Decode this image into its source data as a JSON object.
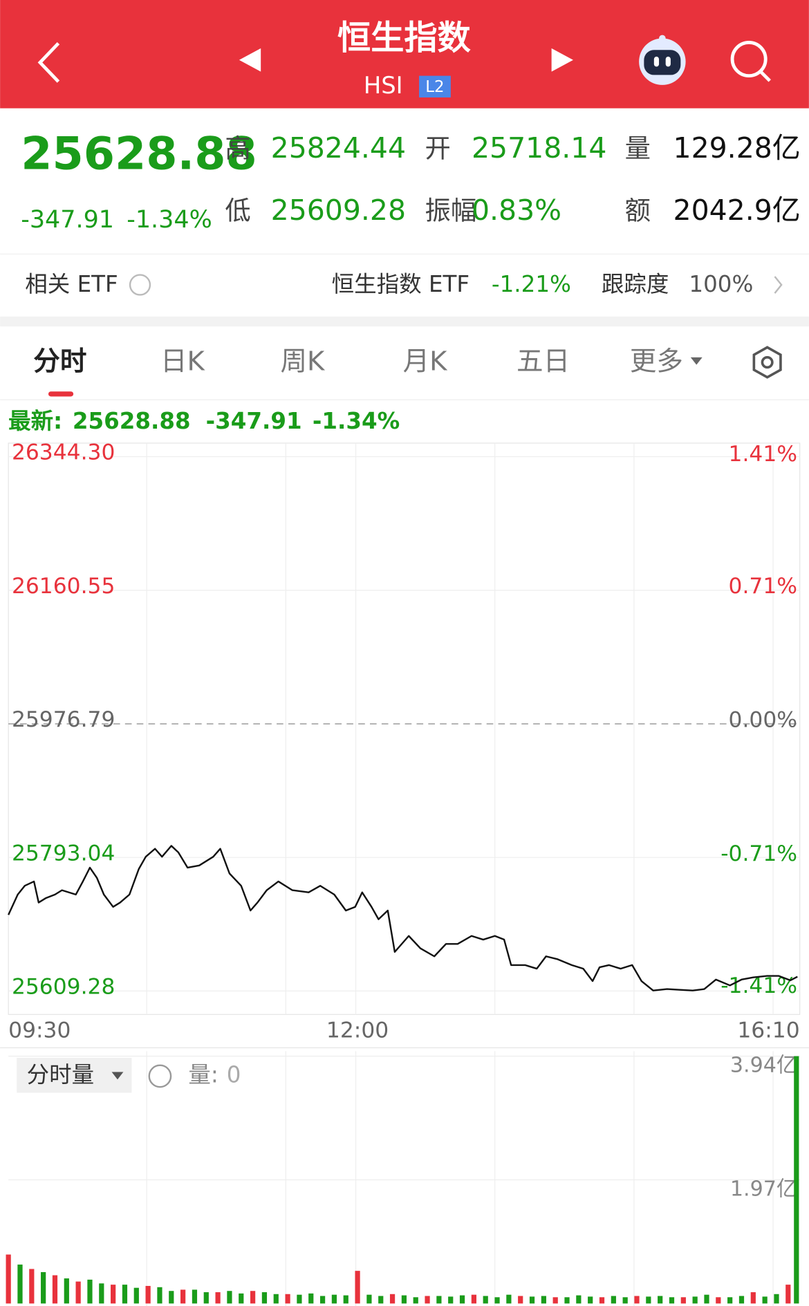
{
  "header": {
    "title": "恒生指数",
    "code": "HSI",
    "badge": "L2"
  },
  "quote": {
    "price": "25628.88",
    "change": "-347.91",
    "change_pct": "-1.34%",
    "items": [
      {
        "label": "高",
        "value": "25824.44"
      },
      {
        "label": "开",
        "value": "25718.14"
      },
      {
        "label": "量",
        "value": "129.28亿"
      },
      {
        "label": "低",
        "value": "25609.28"
      },
      {
        "label": "振幅",
        "value": "0.83%"
      },
      {
        "label": "额",
        "value": "2042.9亿"
      }
    ]
  },
  "etf": {
    "label": "相关 ETF",
    "name": "恒生指数 ETF",
    "change": "-1.21%",
    "tracking_label": "跟踪度",
    "tracking": "100%"
  },
  "tabs": [
    "分时",
    "日K",
    "周K",
    "月K",
    "五日",
    "更多"
  ],
  "latest": {
    "label": "最新:"
  },
  "volume_panel": {
    "selector": "分时量",
    "label": "量:",
    "value": "0"
  },
  "chart_data": [
    {
      "type": "line",
      "x": [
        0,
        4,
        7,
        11,
        13,
        16,
        20,
        23,
        29,
        32,
        35,
        38,
        41,
        45,
        48,
        52,
        56,
        59,
        63,
        66,
        70,
        73,
        77,
        82,
        88,
        91,
        95,
        100,
        104,
        107,
        111,
        116,
        122,
        129,
        134,
        140,
        145,
        149,
        152,
        156,
        159,
        163,
        166,
        172,
        177,
        183,
        188,
        193,
        199,
        204,
        209,
        213,
        216,
        222,
        227,
        231,
        236,
        242,
        247,
        251,
        254,
        258,
        263,
        268,
        272,
        277,
        283,
        288,
        294,
        299,
        304,
        310,
        315,
        320,
        326,
        331,
        336,
        339
      ],
      "series": [
        {
          "color": "#111111",
          "values": [
            25714,
            25742,
            25754,
            25760,
            25731,
            25737,
            25742,
            25748,
            25742,
            25760,
            25779,
            25765,
            25742,
            25725,
            25731,
            25742,
            25777,
            25794,
            25805,
            25794,
            25809,
            25800,
            25779,
            25782,
            25794,
            25805,
            25771,
            25754,
            25720,
            25731,
            25748,
            25760,
            25748,
            25745,
            25754,
            25742,
            25720,
            25725,
            25745,
            25725,
            25708,
            25720,
            25663,
            25685,
            25668,
            25657,
            25674,
            25674,
            25685,
            25680,
            25685,
            25680,
            25645,
            25645,
            25640,
            25657,
            25653,
            25645,
            25640,
            25623,
            25642,
            25645,
            25640,
            25645,
            25623,
            25610,
            25612,
            25611,
            25610,
            25612,
            25625,
            25617,
            25625,
            25628,
            25630,
            25630,
            25624,
            25629
          ]
        }
      ],
      "xlim": [
        0,
        340
      ],
      "xticks": [
        {
          "value": 0,
          "label": "09:30"
        },
        {
          "value": 150,
          "label": "12:00"
        },
        {
          "value": 340,
          "label": "16:10"
        }
      ],
      "ylim": [
        25577,
        26363
      ],
      "yticks": [
        {
          "value": 26344.3,
          "label": "26344.30"
        },
        26160.55,
        25976.79,
        25793.04,
        25609.28
      ],
      "y2lim": [
        -1.54,
        1.49
      ],
      "y2ticks": [
        {
          "value": 1.41,
          "label": "1.41%"
        },
        {
          "value": 0.71,
          "label": "0.71%"
        },
        {
          "value": 0,
          "label": "0.00%"
        },
        {
          "value": -0.71,
          "label": "-0.71%"
        },
        {
          "value": -1.41,
          "label": "-1.41%"
        }
      ],
      "grid": true
    },
    {
      "type": "bar",
      "series": [
        {
          "color": "#e8323c",
          "x": [
            0,
            10,
            20,
            30,
            45,
            60,
            75,
            90,
            105,
            120,
            150,
            165,
            180,
            200,
            220,
            235,
            255,
            270,
            290,
            305,
            320,
            335
          ],
          "values": [
            0.78,
            0.55,
            0.45,
            0.35,
            0.3,
            0.28,
            0.22,
            0.18,
            0.2,
            0.15,
            0.52,
            0.15,
            0.12,
            0.14,
            0.12,
            0.1,
            0.1,
            0.12,
            0.1,
            0.1,
            0.18,
            0.3
          ]
        },
        {
          "color": "#1a9c1a",
          "x": [
            5,
            15,
            25,
            35,
            40,
            50,
            55,
            65,
            70,
            80,
            85,
            95,
            100,
            110,
            115,
            125,
            130,
            135,
            140,
            145,
            155,
            160,
            170,
            175,
            185,
            190,
            195,
            205,
            210,
            215,
            225,
            230,
            240,
            245,
            250,
            260,
            265,
            275,
            280,
            285,
            295,
            300,
            310,
            315,
            325,
            330,
            340
          ],
          "values": [
            0.62,
            0.5,
            0.4,
            0.38,
            0.32,
            0.3,
            0.25,
            0.26,
            0.2,
            0.22,
            0.18,
            0.2,
            0.16,
            0.18,
            0.15,
            0.14,
            0.16,
            0.12,
            0.14,
            0.13,
            0.14,
            0.12,
            0.13,
            0.1,
            0.12,
            0.11,
            0.13,
            0.12,
            0.1,
            0.14,
            0.11,
            0.12,
            0.1,
            0.13,
            0.11,
            0.12,
            0.1,
            0.11,
            0.12,
            0.1,
            0.11,
            0.14,
            0.1,
            0.12,
            0.11,
            0.15,
            3.94
          ]
        }
      ],
      "xlim": [
        0,
        340
      ],
      "ylim": [
        0,
        4.02
      ],
      "yticks": [
        {
          "value": 3.94,
          "label": "3.94亿"
        },
        {
          "value": 1.97,
          "label": "1.97亿"
        }
      ]
    }
  ]
}
